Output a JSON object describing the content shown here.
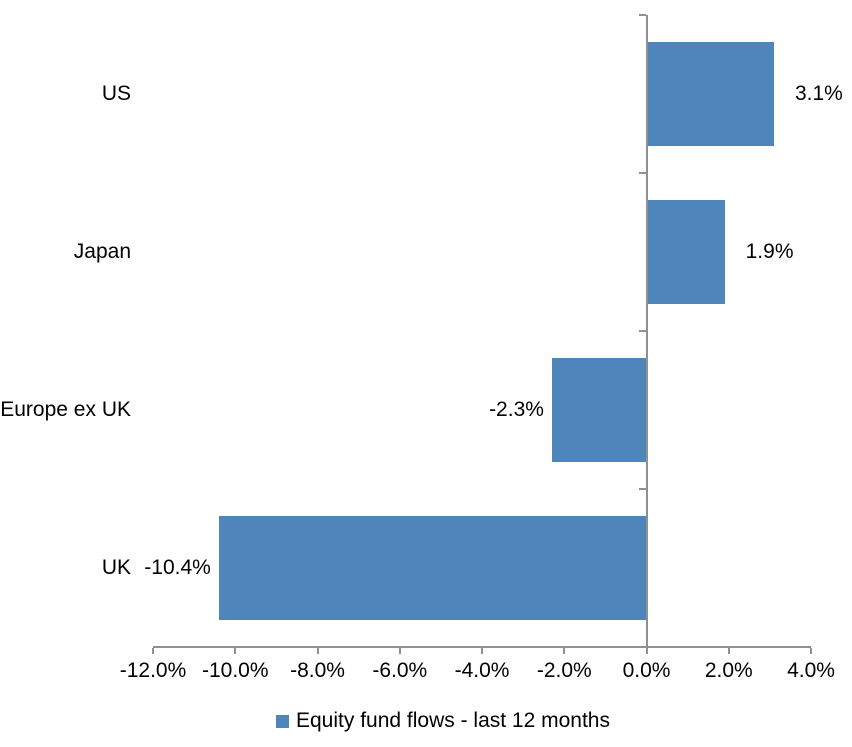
{
  "chart_data": {
    "type": "bar",
    "orientation": "horizontal",
    "title": "",
    "categories": [
      "US",
      "Japan",
      "Europe ex UK",
      "UK"
    ],
    "values": [
      3.1,
      1.9,
      -2.3,
      -10.4
    ],
    "value_labels": [
      "3.1%",
      "1.9%",
      "-2.3%",
      "-10.4%"
    ],
    "series_name": "Equity fund flows - last 12 months",
    "xlabel": "",
    "ylabel": "",
    "xlim": [
      -12,
      4
    ],
    "x_tick_step": 2,
    "x_tick_labels": [
      "-12.0%",
      "-10.0%",
      "-8.0%",
      "-6.0%",
      "-4.0%",
      "-2.0%",
      "0.0%",
      "2.0%",
      "4.0%"
    ],
    "grid": false,
    "legend_position": "bottom",
    "colors": {
      "bar": "#4E86BC",
      "axis": "#909090",
      "text": "#000000",
      "background": "#FFFFFF"
    }
  },
  "legend": {
    "label": "Equity fund flows - last 12 months"
  }
}
